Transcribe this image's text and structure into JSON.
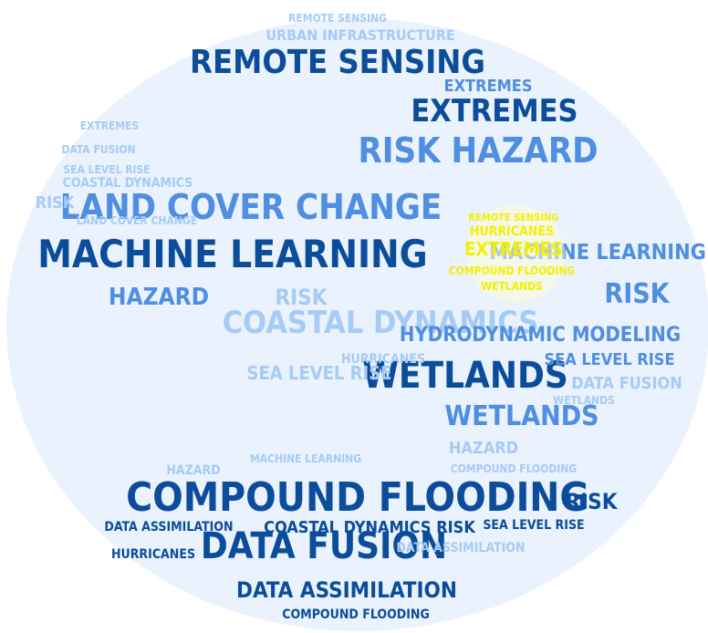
{
  "colors": {
    "light": "#a6cbf5",
    "mid": "#4f8ee0",
    "dark": "#0b4d9a",
    "sun": "#f4f000",
    "bg": "#ffffff"
  },
  "words": [
    {
      "text": "COMPOUND FLOODING",
      "tone": "dark"
    },
    {
      "text": "DATA FUSION",
      "tone": "dark"
    },
    {
      "text": "WETLANDS",
      "tone": "dark"
    },
    {
      "text": "RISK",
      "tone": "dark"
    },
    {
      "text": "DATA ASSIMILATION",
      "tone": "dark"
    },
    {
      "text": "MACHINE LEARNING",
      "tone": "dark"
    },
    {
      "text": "REMOTE SENSING",
      "tone": "dark"
    },
    {
      "text": "EXTREMES",
      "tone": "dark"
    },
    {
      "text": "COASTAL DYNAMICS RISK",
      "tone": "dark"
    },
    {
      "text": "DATA ASSIMILATION",
      "tone": "dark"
    },
    {
      "text": "SEA LEVEL RISE",
      "tone": "dark"
    },
    {
      "text": "HURRICANES",
      "tone": "dark"
    },
    {
      "text": "COMPOUND FLOODING",
      "tone": "dark"
    },
    {
      "text": "REMOTE SENSING",
      "tone": "light"
    },
    {
      "text": "URBAN INFRASTRUCTURE",
      "tone": "light"
    },
    {
      "text": "EXTREMES",
      "tone": "mid"
    },
    {
      "text": "RISK HAZARD",
      "tone": "mid"
    },
    {
      "text": "LAND COVER CHANGE",
      "tone": "mid"
    },
    {
      "text": "MACHINE LEARNING",
      "tone": "mid"
    },
    {
      "text": "RISK",
      "tone": "mid"
    },
    {
      "text": "HAZARD",
      "tone": "mid"
    },
    {
      "text": "RISK",
      "tone": "light"
    },
    {
      "text": "COASTAL DYNAMICS",
      "tone": "light"
    },
    {
      "text": "HYDRODYNAMIC MODELING",
      "tone": "mid"
    },
    {
      "text": "WETLANDS",
      "tone": "mid"
    },
    {
      "text": "SEA LEVEL RISE",
      "tone": "mid"
    },
    {
      "text": "DATA FUSION",
      "tone": "light"
    },
    {
      "text": "SEA LEVEL RISE",
      "tone": "light"
    },
    {
      "text": "HAZARD",
      "tone": "light"
    },
    {
      "text": "LAND COVER CHANGE",
      "tone": "light"
    },
    {
      "text": "HURRICANES",
      "tone": "light"
    },
    {
      "text": "DATA FUSION",
      "tone": "light"
    },
    {
      "text": "SEA LEVEL RISE",
      "tone": "light"
    },
    {
      "text": "EXTREMES",
      "tone": "light"
    },
    {
      "text": "COASTAL DYNAMICS",
      "tone": "light"
    },
    {
      "text": "RISK",
      "tone": "light"
    },
    {
      "text": "HAZARD",
      "tone": "light"
    },
    {
      "text": "DATA ASSIMILATION",
      "tone": "light"
    },
    {
      "text": "MACHINE LEARNING",
      "tone": "light"
    },
    {
      "text": "WETLANDS",
      "tone": "light"
    },
    {
      "text": "COMPOUND FLOODING",
      "tone": "light"
    },
    {
      "text": "REMOTE SENSING",
      "tone": "sun"
    },
    {
      "text": "HURRICANES",
      "tone": "sun"
    },
    {
      "text": "EXTREMES",
      "tone": "sun"
    },
    {
      "text": "COMPOUND FLOODING",
      "tone": "sun"
    },
    {
      "text": "WETLANDS",
      "tone": "sun"
    }
  ]
}
